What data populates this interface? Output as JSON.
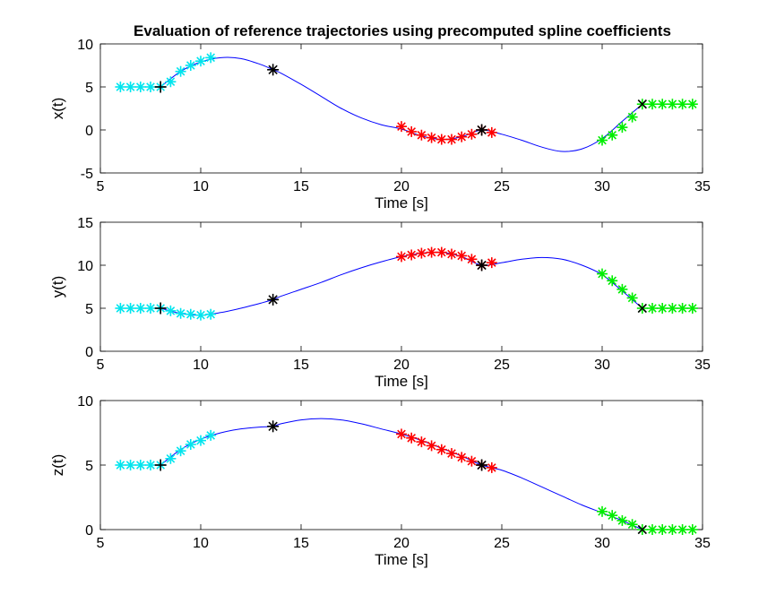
{
  "chart_data": {
    "type": "line",
    "title": "Evaluation of reference trajectories using precomputed spline coefficients",
    "colors": {
      "curve": "#0000ff",
      "cyan_markers": "#00e5ee",
      "red_markers": "#ff0000",
      "green_markers": "#00ee00",
      "knot_markers": "#000000"
    },
    "subplots": [
      {
        "xlabel": "Time [s]",
        "ylabel": "x(t)",
        "xlim": [
          5,
          35
        ],
        "ylim": [
          -5,
          10
        ],
        "xticks": [
          "5",
          "10",
          "15",
          "20",
          "25",
          "30",
          "35"
        ],
        "yticks": [
          "-5",
          "0",
          "5",
          "10"
        ],
        "knots": {
          "t": [
            8,
            13.6,
            24,
            32
          ],
          "y": [
            5,
            7,
            0,
            3
          ],
          "marker_styles": [
            "plus",
            "star",
            "star",
            "x"
          ]
        },
        "curve": {
          "t": [
            8,
            9,
            10,
            11,
            12,
            13,
            13.6,
            14,
            15,
            16,
            17,
            18,
            19,
            20,
            21,
            22,
            23,
            24,
            25,
            26,
            27,
            28,
            29,
            30,
            31,
            32
          ],
          "y": [
            5,
            6.8,
            7.9,
            8.4,
            8.3,
            7.6,
            7,
            6.6,
            5.3,
            3.9,
            2.5,
            1.4,
            0.6,
            0.1,
            -0.7,
            -1.1,
            -0.8,
            0,
            -0.5,
            -1.2,
            -2,
            -2.5,
            -2.2,
            -1,
            1,
            3
          ]
        },
        "series": [
          {
            "color": "cyan",
            "t": [
              6,
              6.5,
              7,
              7.5,
              8,
              8.5,
              9,
              9.5,
              10,
              10.5
            ],
            "y": [
              5,
              5,
              5,
              5,
              5,
              5.6,
              6.8,
              7.5,
              8,
              8.4
            ]
          },
          {
            "color": "red",
            "t": [
              20,
              20.5,
              21,
              21.5,
              22,
              22.5,
              23,
              23.5,
              24,
              24.5
            ],
            "y": [
              0.4,
              -0.2,
              -0.6,
              -0.9,
              -1.1,
              -1.1,
              -0.8,
              -0.5,
              0,
              -0.3
            ]
          },
          {
            "color": "green",
            "t": [
              30,
              30.5,
              31,
              31.5,
              32,
              32.5,
              33,
              33.5,
              34,
              34.5
            ],
            "y": [
              -1.2,
              -0.6,
              0.3,
              1.5,
              3,
              3,
              3,
              3,
              3,
              3
            ]
          }
        ]
      },
      {
        "xlabel": "Time [s]",
        "ylabel": "y(t)",
        "xlim": [
          5,
          35
        ],
        "ylim": [
          0,
          15
        ],
        "xticks": [
          "5",
          "10",
          "15",
          "20",
          "25",
          "30",
          "35"
        ],
        "yticks": [
          "0",
          "5",
          "10",
          "15"
        ],
        "knots": {
          "t": [
            8,
            13.6,
            24,
            32
          ],
          "y": [
            5,
            6,
            10,
            5
          ],
          "marker_styles": [
            "plus",
            "star",
            "star",
            "x"
          ]
        },
        "curve": {
          "t": [
            8,
            9,
            10,
            11,
            12,
            13,
            13.6,
            14,
            15,
            16,
            17,
            18,
            19,
            20,
            21,
            22,
            23,
            24,
            25,
            26,
            27,
            28,
            29,
            30,
            31,
            32
          ],
          "y": [
            5,
            4.4,
            4.2,
            4.5,
            5,
            5.6,
            6,
            6.4,
            7.2,
            8,
            8.9,
            9.7,
            10.4,
            11,
            11.4,
            11.5,
            11,
            10,
            10.3,
            10.7,
            10.9,
            10.7,
            10,
            8.9,
            7,
            5
          ]
        },
        "series": [
          {
            "color": "cyan",
            "t": [
              6,
              6.5,
              7,
              7.5,
              8,
              8.5,
              9,
              9.5,
              10,
              10.5
            ],
            "y": [
              5,
              5,
              5,
              5,
              5,
              4.7,
              4.4,
              4.3,
              4.2,
              4.3
            ]
          },
          {
            "color": "red",
            "t": [
              20,
              20.5,
              21,
              21.5,
              22,
              22.5,
              23,
              23.5,
              24,
              24.5
            ],
            "y": [
              11,
              11.2,
              11.4,
              11.5,
              11.5,
              11.3,
              11.1,
              10.7,
              10,
              10.3
            ]
          },
          {
            "color": "green",
            "t": [
              30,
              30.5,
              31,
              31.5,
              32,
              32.5,
              33,
              33.5,
              34,
              34.5
            ],
            "y": [
              9,
              8.2,
              7.2,
              6.2,
              5,
              5,
              5,
              5,
              5,
              5
            ]
          }
        ]
      },
      {
        "xlabel": "Time [s]",
        "ylabel": "z(t)",
        "xlim": [
          5,
          35
        ],
        "ylim": [
          0,
          10
        ],
        "xticks": [
          "5",
          "10",
          "15",
          "20",
          "25",
          "30",
          "35"
        ],
        "yticks": [
          "0",
          "5",
          "10"
        ],
        "knots": {
          "t": [
            8,
            13.6,
            24,
            32
          ],
          "y": [
            5,
            8,
            5,
            0
          ],
          "marker_styles": [
            "plus",
            "star",
            "star",
            "x"
          ]
        },
        "curve": {
          "t": [
            8,
            9,
            10,
            11,
            12,
            13,
            13.6,
            14,
            15,
            16,
            17,
            18,
            19,
            20,
            21,
            22,
            23,
            24,
            25,
            26,
            27,
            28,
            29,
            30,
            31,
            32
          ],
          "y": [
            5,
            6.2,
            7,
            7.5,
            7.8,
            7.95,
            8,
            8.2,
            8.5,
            8.6,
            8.5,
            8.2,
            7.8,
            7.4,
            6.9,
            6.3,
            5.7,
            5,
            4.6,
            4,
            3.3,
            2.6,
            1.9,
            1.3,
            0.7,
            0
          ]
        },
        "series": [
          {
            "color": "cyan",
            "t": [
              6,
              6.5,
              7,
              7.5,
              8,
              8.5,
              9,
              9.5,
              10,
              10.5
            ],
            "y": [
              5,
              5,
              5,
              5,
              5,
              5.5,
              6.1,
              6.6,
              6.9,
              7.3
            ]
          },
          {
            "color": "red",
            "t": [
              20,
              20.5,
              21,
              21.5,
              22,
              22.5,
              23,
              23.5,
              24,
              24.5
            ],
            "y": [
              7.4,
              7.1,
              6.8,
              6.5,
              6.2,
              5.9,
              5.6,
              5.3,
              5,
              4.8
            ]
          },
          {
            "color": "green",
            "t": [
              30,
              30.5,
              31,
              31.5,
              32,
              32.5,
              33,
              33.5,
              34,
              34.5
            ],
            "y": [
              1.4,
              1.1,
              0.7,
              0.4,
              0,
              0,
              0,
              0,
              0,
              0
            ]
          }
        ]
      }
    ]
  }
}
